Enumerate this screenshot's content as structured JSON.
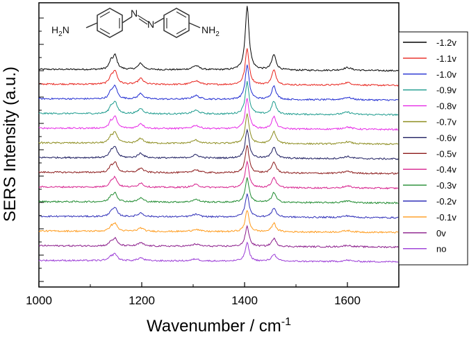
{
  "chart_data": {
    "type": "line",
    "xlabel": "Wavenumber / cm",
    "xlabel_superscript": "-1",
    "ylabel": "SERS Intensity (a.u.)",
    "xlim": [
      1000,
      1700
    ],
    "x_ticks": [
      1000,
      1200,
      1400,
      1600
    ],
    "x_tick_labels": [
      "1000",
      "1200",
      "1400",
      "1600"
    ],
    "y_ticks_labeled": false,
    "grid": false,
    "legend_position": "right",
    "molecule": {
      "type": "4,4'-diaminoazobenzene structure",
      "left_group": "H2N",
      "right_group": "NH2",
      "azo_label": "N=N"
    },
    "peaks_cm-1": [
      1140,
      1148,
      1198,
      1305,
      1405,
      1457,
      1600
    ],
    "series": [
      {
        "name": "-1.2v",
        "color": "#000000",
        "baseline": 0.0,
        "peak_scale": 1.0
      },
      {
        "name": "-1.1v",
        "color": "#e8231c",
        "baseline": -0.09,
        "peak_scale": 0.95
      },
      {
        "name": "-1.0v",
        "color": "#1f2bd1",
        "baseline": -0.18,
        "peak_scale": 0.9
      },
      {
        "name": "-0.9v",
        "color": "#1a9a8c",
        "baseline": -0.27,
        "peak_scale": 0.85
      },
      {
        "name": "-0.8v",
        "color": "#e62ae6",
        "baseline": -0.36,
        "peak_scale": 0.8
      },
      {
        "name": "-0.7v",
        "color": "#8c8c1e",
        "baseline": -0.45,
        "peak_scale": 0.78
      },
      {
        "name": "-0.6v",
        "color": "#1a1a5e",
        "baseline": -0.54,
        "peak_scale": 0.76
      },
      {
        "name": "-0.5v",
        "color": "#8b1a1a",
        "baseline": -0.63,
        "peak_scale": 0.72
      },
      {
        "name": "-0.4v",
        "color": "#d61f8c",
        "baseline": -0.72,
        "peak_scale": 0.68
      },
      {
        "name": "-0.3v",
        "color": "#1e8a2e",
        "baseline": -0.81,
        "peak_scale": 0.64
      },
      {
        "name": "-0.2v",
        "color": "#2e2eb8",
        "baseline": -0.9,
        "peak_scale": 0.6
      },
      {
        "name": "-0.1v",
        "color": "#ff9a1a",
        "baseline": -0.99,
        "peak_scale": 0.56
      },
      {
        "name": "0v",
        "color": "#8a1a8a",
        "baseline": -1.08,
        "peak_scale": 0.52
      },
      {
        "name": "no",
        "color": "#9a3ad6",
        "baseline": -1.17,
        "peak_scale": 0.48
      }
    ]
  }
}
